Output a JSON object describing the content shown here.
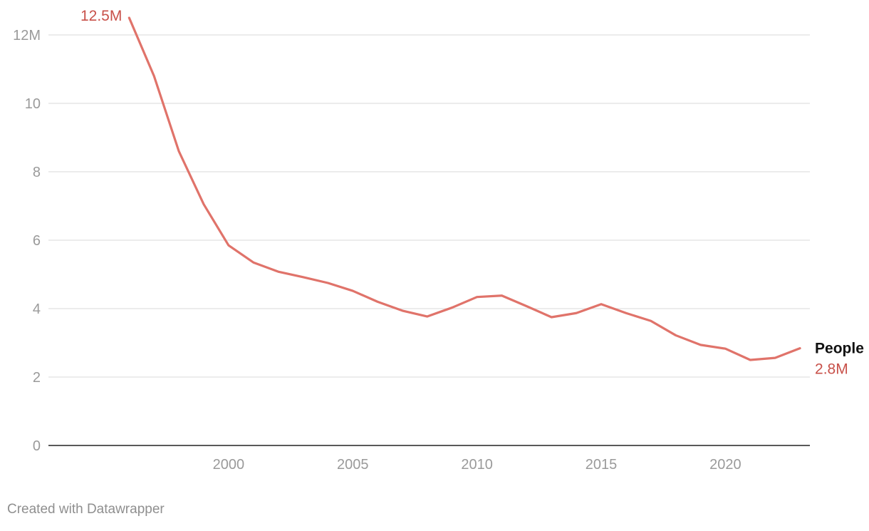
{
  "chart_data": {
    "type": "line",
    "title": "",
    "xlabel": "",
    "ylabel": "",
    "x": [
      1996,
      1997,
      1998,
      1999,
      2000,
      2001,
      2002,
      2003,
      2004,
      2005,
      2006,
      2007,
      2008,
      2009,
      2010,
      2011,
      2012,
      2013,
      2014,
      2015,
      2016,
      2017,
      2018,
      2019,
      2020,
      2021,
      2022,
      2023
    ],
    "series": [
      {
        "name": "People",
        "values": [
          12.5,
          10.8,
          8.6,
          7.05,
          5.85,
          5.35,
          5.08,
          4.92,
          4.75,
          4.52,
          4.2,
          3.94,
          3.77,
          4.03,
          4.34,
          4.38,
          4.07,
          3.75,
          3.87,
          4.13,
          3.87,
          3.64,
          3.22,
          2.94,
          2.83,
          2.5,
          2.56,
          2.84
        ],
        "color": "#e0736a"
      }
    ],
    "start_label": "12.5M",
    "end_label": "2.8M",
    "xlim": [
      1992.75,
      2023.4
    ],
    "ylim": [
      0,
      12.5
    ],
    "y_ticks": [
      0,
      2,
      4,
      6,
      8,
      10,
      12
    ],
    "y_tick_labels": [
      "0",
      "2",
      "4",
      "6",
      "8",
      "10",
      "12M"
    ],
    "x_ticks": [
      2000,
      2005,
      2010,
      2015,
      2020
    ],
    "x_tick_labels": [
      "2000",
      "2005",
      "2010",
      "2015",
      "2020"
    ],
    "grid": true,
    "legend": "inline-right"
  },
  "colors": {
    "line": "#e0736a",
    "value_label": "#c8514a",
    "grid": "#e1e1e1",
    "axis": "#222222",
    "tick_text": "#9a9a9a",
    "series_label": "#111111",
    "credit": "#8f8f8f"
  },
  "footer": {
    "credit": "Created with Datawrapper"
  }
}
